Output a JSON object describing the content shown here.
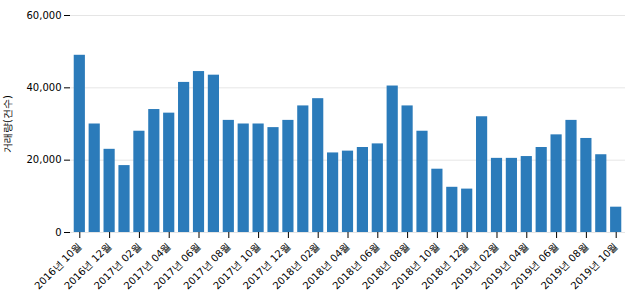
{
  "chart_data": {
    "type": "bar",
    "categories": [
      "2016년 10월",
      null,
      "2016년 12월",
      null,
      "2017년 02월",
      null,
      "2017년 04월",
      null,
      "2017년 06월",
      null,
      "2017년 08월",
      null,
      "2017년 10월",
      null,
      "2017년 12월",
      null,
      "2018년 02월",
      null,
      "2018년 04월",
      null,
      "2018년 06월",
      null,
      "2018년 08월",
      null,
      "2018년 10월",
      null,
      "2018년 12월",
      null,
      "2019년 02월",
      null,
      "2019년 04월",
      null,
      "2019년 06월",
      null,
      "2019년 08월",
      null,
      "2019년 10월"
    ],
    "values": [
      49000,
      30000,
      23000,
      18500,
      28000,
      34000,
      33000,
      41500,
      44500,
      43500,
      31000,
      30000,
      30000,
      29000,
      31000,
      35000,
      37000,
      22000,
      22500,
      23500,
      24500,
      40500,
      35000,
      28000,
      17500,
      12500,
      12000,
      32000,
      20500,
      20500,
      21000,
      23500,
      27000,
      31000,
      26000,
      21500,
      7000
    ],
    "color": "#2b7bba",
    "ylabel": "거래량(건수)",
    "ylim": [
      0,
      60000
    ],
    "yticks": [
      0,
      {
        "value": 20000,
        "label": "20,000"
      },
      {
        "value": 40000,
        "label": "40,000"
      },
      {
        "value": 60000,
        "label": "60,000"
      }
    ],
    "grid": true
  }
}
